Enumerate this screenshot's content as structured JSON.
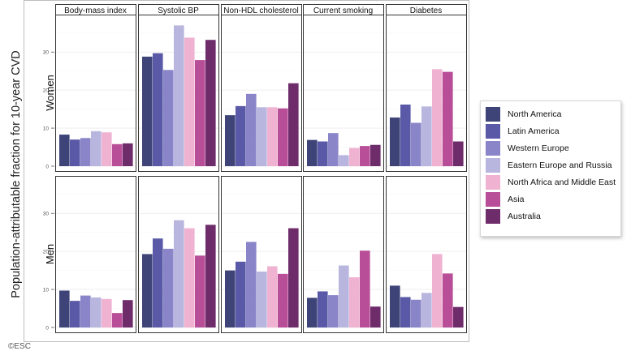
{
  "ylabel": "Population-attributable fraction for 10-year CVD",
  "colors": {
    "North America": "#3e4478",
    "Latin America": "#5a59a7",
    "Western Europe": "#8985c8",
    "Eastern Europe and Russia": "#b8b6de",
    "North Africa and Middle East": "#efb3d1",
    "Asia": "#b84d98",
    "Australia": "#6e2c6a"
  },
  "legend": [
    "North America",
    "Latin America",
    "Western Europe",
    "Eastern Europe and Russia",
    "North Africa and Middle East",
    "Asia",
    "Australia"
  ],
  "footer_text": "©ESC",
  "chart_data": {
    "type": "bar",
    "facet_columns": [
      "Body-mass index",
      "Systolic BP",
      "Non-HDL cholesterol",
      "Current smoking",
      "Diabetes"
    ],
    "facet_rows": [
      "Women",
      "Men"
    ],
    "yticks": [
      0,
      10,
      20,
      30
    ],
    "ylim": [
      0,
      39
    ],
    "series_order": [
      "North America",
      "Latin America",
      "Western Europe",
      "Eastern Europe and Russia",
      "North Africa and Middle East",
      "Asia",
      "Australia"
    ],
    "values": {
      "Women": {
        "Body-mass index": [
          8.3,
          7.0,
          7.4,
          9.2,
          8.9,
          5.8,
          6.0
        ],
        "Systolic BP": [
          28.8,
          29.7,
          25.3,
          37.0,
          33.8,
          27.9,
          33.2
        ],
        "Non-HDL cholesterol": [
          13.4,
          15.8,
          19.0,
          15.5,
          15.5,
          15.2,
          21.8
        ],
        "Current smoking": [
          6.9,
          6.5,
          8.7,
          2.9,
          4.8,
          5.3,
          5.6
        ],
        "Diabetes": [
          12.8,
          16.2,
          11.4,
          15.7,
          25.5,
          24.8,
          6.5
        ]
      },
      "Men": {
        "Body-mass index": [
          9.7,
          7.0,
          8.4,
          7.9,
          7.5,
          3.8,
          7.2
        ],
        "Systolic BP": [
          19.3,
          23.4,
          20.7,
          28.2,
          26.1,
          18.9,
          27.0
        ],
        "Non-HDL cholesterol": [
          15.0,
          17.3,
          22.5,
          14.7,
          16.1,
          14.1,
          26.1
        ],
        "Current smoking": [
          7.8,
          9.5,
          8.5,
          16.3,
          13.2,
          20.2,
          5.5
        ],
        "Diabetes": [
          11.0,
          8.0,
          7.3,
          9.1,
          19.3,
          14.2,
          5.4
        ]
      }
    },
    "grid": true
  }
}
